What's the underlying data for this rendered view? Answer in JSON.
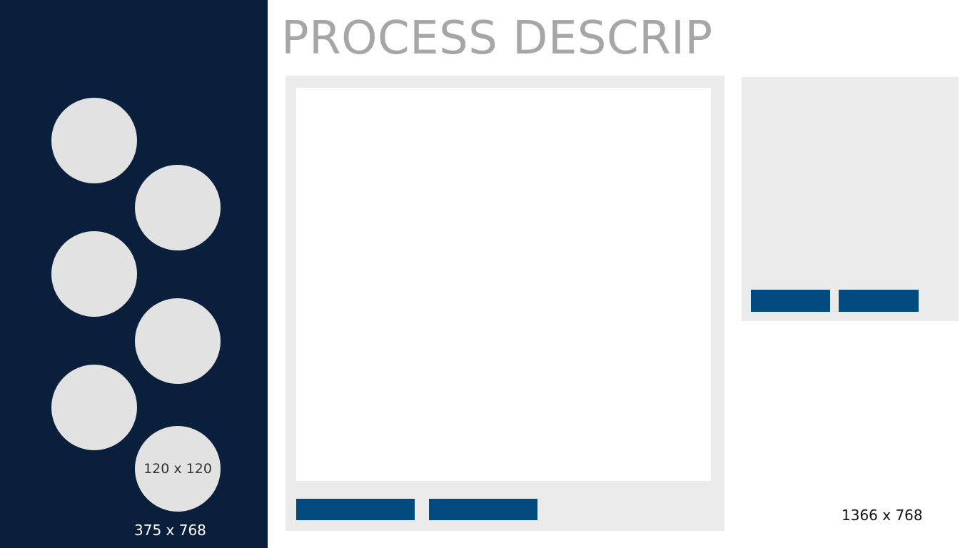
{
  "title": "PROCESS DESCRIP",
  "sidebar": {
    "items": [
      {
        "label": ""
      },
      {
        "label": ""
      },
      {
        "label": ""
      },
      {
        "label": ""
      },
      {
        "label": ""
      },
      {
        "label": "120 x 120"
      }
    ],
    "size_label": "375 x 768"
  },
  "main_panel": {
    "buttons": [
      {
        "label": ""
      },
      {
        "label": ""
      }
    ]
  },
  "side_panel": {
    "buttons": [
      {
        "label": ""
      },
      {
        "label": ""
      }
    ]
  },
  "page_size_label": "1366 x 768",
  "colors": {
    "sidebar_bg": "#0a1f3c",
    "circle": "#e2e2e2",
    "panel_bg": "#ebebeb",
    "button": "#034a7f",
    "title": "#a6a6a6"
  }
}
